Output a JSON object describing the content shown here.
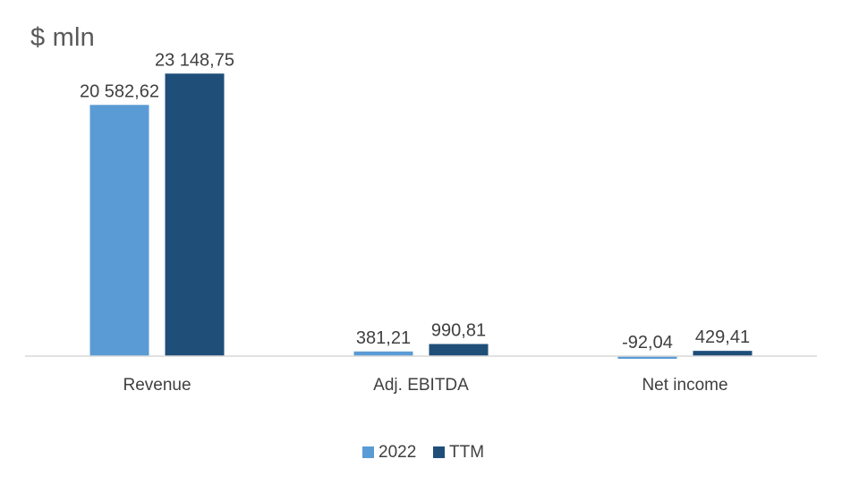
{
  "unit_label": "$ mln",
  "colors": {
    "series_2022": "#5b9bd5",
    "series_ttm": "#1f4e79",
    "axis": "#d9d9d9",
    "text": "#404040"
  },
  "chart_data": {
    "type": "bar",
    "title": "",
    "ylabel": "$ mln",
    "xlabel": "",
    "categories": [
      "Revenue",
      "Adj. EBITDA",
      "Net income"
    ],
    "series": [
      {
        "name": "2022",
        "values": [
          20582.62,
          381.21,
          -92.04
        ],
        "labels": [
          "20 582,62",
          "381,21",
          "-92,04"
        ]
      },
      {
        "name": "TTM",
        "values": [
          23148.75,
          990.81,
          429.41
        ],
        "labels": [
          "23 148,75",
          "990,81",
          "429,41"
        ]
      }
    ],
    "ylim": [
      0,
      25000
    ],
    "grid": false,
    "legend_position": "bottom"
  }
}
